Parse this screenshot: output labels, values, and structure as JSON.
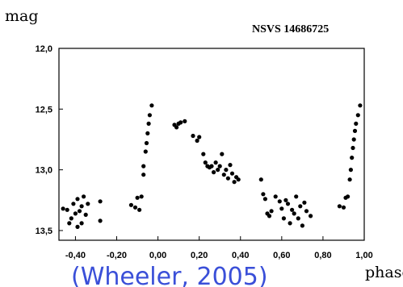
{
  "chart_data": {
    "type": "scatter",
    "title": "NSVS 14686725",
    "ylabel": "mag",
    "xlabel": "phase",
    "x_ticks": [
      "-0,40",
      "-0,20",
      "0,00",
      "0,20",
      "0,40",
      "0,60",
      "0,80",
      "1,00"
    ],
    "x_tick_values": [
      -0.4,
      -0.2,
      0.0,
      0.2,
      0.4,
      0.6,
      0.8,
      1.0
    ],
    "y_ticks": [
      "12,0",
      "12,5",
      "13,0",
      "13,5"
    ],
    "y_tick_values": [
      12.0,
      12.5,
      13.0,
      13.5
    ],
    "xlim": [
      -0.48,
      1.0
    ],
    "ylim": [
      12.0,
      13.58
    ],
    "y_inverted": true,
    "grid": false,
    "point_color": "#000000",
    "points": [
      [
        -0.46,
        13.32
      ],
      [
        -0.44,
        13.33
      ],
      [
        -0.43,
        13.44
      ],
      [
        -0.42,
        13.4
      ],
      [
        -0.41,
        13.28
      ],
      [
        -0.4,
        13.36
      ],
      [
        -0.39,
        13.24
      ],
      [
        -0.39,
        13.47
      ],
      [
        -0.38,
        13.34
      ],
      [
        -0.37,
        13.3
      ],
      [
        -0.37,
        13.44
      ],
      [
        -0.36,
        13.22
      ],
      [
        -0.35,
        13.37
      ],
      [
        -0.34,
        13.28
      ],
      [
        -0.28,
        13.26
      ],
      [
        -0.28,
        13.42
      ],
      [
        -0.13,
        13.29
      ],
      [
        -0.11,
        13.31
      ],
      [
        -0.1,
        13.23
      ],
      [
        -0.09,
        13.33
      ],
      [
        -0.08,
        13.22
      ],
      [
        -0.07,
        13.04
      ],
      [
        -0.07,
        12.97
      ],
      [
        -0.06,
        12.85
      ],
      [
        -0.055,
        12.78
      ],
      [
        -0.05,
        12.7
      ],
      [
        -0.045,
        12.62
      ],
      [
        -0.04,
        12.55
      ],
      [
        -0.03,
        12.47
      ],
      [
        0.08,
        12.63
      ],
      [
        0.09,
        12.65
      ],
      [
        0.1,
        12.62
      ],
      [
        0.11,
        12.61
      ],
      [
        0.13,
        12.6
      ],
      [
        0.17,
        12.72
      ],
      [
        0.19,
        12.76
      ],
      [
        0.2,
        12.73
      ],
      [
        0.22,
        12.87
      ],
      [
        0.23,
        12.94
      ],
      [
        0.24,
        12.97
      ],
      [
        0.25,
        12.98
      ],
      [
        0.26,
        12.97
      ],
      [
        0.27,
        13.02
      ],
      [
        0.28,
        12.94
      ],
      [
        0.29,
        13.0
      ],
      [
        0.3,
        12.97
      ],
      [
        0.31,
        12.87
      ],
      [
        0.32,
        13.04
      ],
      [
        0.33,
        13.0
      ],
      [
        0.34,
        13.07
      ],
      [
        0.35,
        12.96
      ],
      [
        0.36,
        13.03
      ],
      [
        0.37,
        13.1
      ],
      [
        0.38,
        13.06
      ],
      [
        0.39,
        13.08
      ],
      [
        0.5,
        13.08
      ],
      [
        0.51,
        13.2
      ],
      [
        0.52,
        13.24
      ],
      [
        0.53,
        13.36
      ],
      [
        0.54,
        13.38
      ],
      [
        0.55,
        13.34
      ],
      [
        0.57,
        13.22
      ],
      [
        0.59,
        13.26
      ],
      [
        0.6,
        13.32
      ],
      [
        0.61,
        13.4
      ],
      [
        0.62,
        13.25
      ],
      [
        0.63,
        13.28
      ],
      [
        0.64,
        13.44
      ],
      [
        0.65,
        13.33
      ],
      [
        0.66,
        13.36
      ],
      [
        0.67,
        13.22
      ],
      [
        0.68,
        13.4
      ],
      [
        0.69,
        13.3
      ],
      [
        0.7,
        13.46
      ],
      [
        0.71,
        13.27
      ],
      [
        0.72,
        13.34
      ],
      [
        0.74,
        13.38
      ],
      [
        0.88,
        13.3
      ],
      [
        0.9,
        13.31
      ],
      [
        0.91,
        13.23
      ],
      [
        0.92,
        13.22
      ],
      [
        0.93,
        13.08
      ],
      [
        0.935,
        13.0
      ],
      [
        0.94,
        12.9
      ],
      [
        0.945,
        12.82
      ],
      [
        0.95,
        12.75
      ],
      [
        0.955,
        12.68
      ],
      [
        0.96,
        12.62
      ],
      [
        0.97,
        12.55
      ],
      [
        0.98,
        12.47
      ]
    ]
  },
  "caption": "(Wheeler, 2005)"
}
